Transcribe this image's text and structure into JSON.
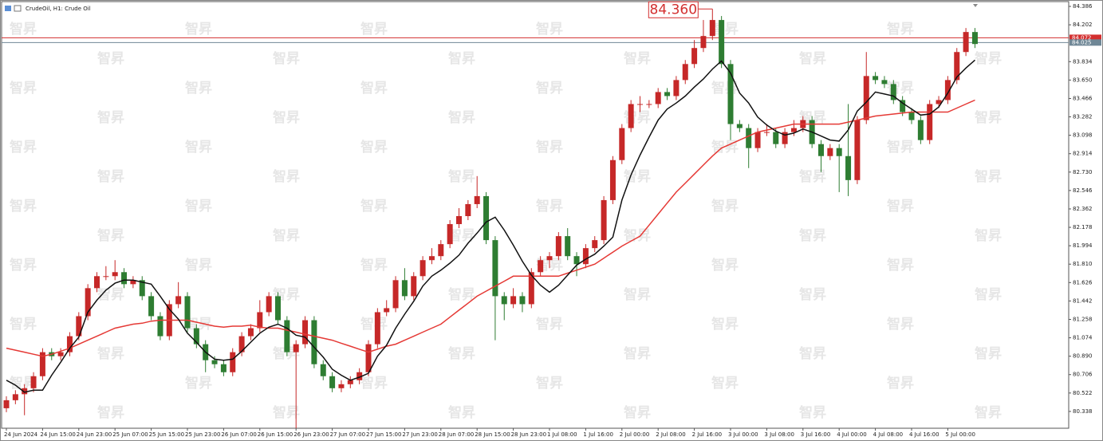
{
  "chart_data": {
    "type": "candlestick",
    "title": "CrudeOil, H1: Crude Oil",
    "watermark": "智昇",
    "up_color": "#c62828",
    "down_color": "#2e7d32",
    "ylim": [
      80.17,
      84.434
    ],
    "yticks": [
      84.386,
      84.202,
      83.834,
      {
        "value": 83.65,
        "label": "83.650"
      },
      83.466,
      83.282,
      83.098,
      82.914,
      {
        "value": 82.73,
        "label": "82.730"
      },
      82.546,
      82.362,
      82.178,
      81.994,
      {
        "value": 81.81,
        "label": "81.810"
      },
      81.626,
      81.442,
      81.258,
      81.074,
      {
        "value": 80.89,
        "label": "80.890"
      },
      80.706,
      80.522,
      80.338
    ],
    "categories": [
      "24 Jun 2024",
      null,
      null,
      null,
      "24 Jun 15:00",
      null,
      null,
      null,
      "24 Jun 23:00",
      null,
      null,
      null,
      "25 Jun 07:00",
      null,
      null,
      null,
      "25 Jun 15:00",
      null,
      null,
      null,
      "25 Jun 23:00",
      null,
      null,
      null,
      "26 Jun 07:00",
      null,
      null,
      null,
      "26 Jun 15:00",
      null,
      null,
      null,
      "26 Jun 23:00",
      null,
      null,
      null,
      "27 Jun 07:00",
      null,
      null,
      null,
      "27 Jun 15:00",
      null,
      null,
      null,
      "27 Jun 23:00",
      null,
      null,
      null,
      "28 Jun 07:00",
      null,
      null,
      null,
      "28 Jun 15:00",
      null,
      null,
      null,
      "28 Jun 23:00",
      null,
      null,
      null,
      "1 Jul 08:00",
      null,
      null,
      null,
      "1 Jul 16:00",
      null,
      null,
      null,
      "2 Jul 00:00",
      null,
      null,
      null,
      "2 Jul 08:00",
      null,
      null,
      null,
      "2 Jul 16:00",
      null,
      null,
      null,
      "3 Jul 00:00",
      null,
      null,
      null,
      "3 Jul 08:00",
      null,
      null,
      null,
      "3 Jul 16:00",
      null,
      null,
      null,
      "4 Jul 00:00",
      null,
      null,
      null,
      "4 Jul 08:00",
      null,
      null,
      null,
      "4 Jul 16:00",
      null,
      null,
      null,
      "5 Jul 00:00",
      null,
      null,
      null
    ],
    "open": [
      80.37,
      80.45,
      80.51,
      80.57,
      80.69,
      80.93,
      80.89,
      80.93,
      81.09,
      81.29,
      81.57,
      81.69,
      81.69,
      81.73,
      81.61,
      81.65,
      81.49,
      81.29,
      81.09,
      81.41,
      81.49,
      81.17,
      81.01,
      80.85,
      80.81,
      80.73,
      80.93,
      81.09,
      81.17,
      81.33,
      81.49,
      81.25,
      80.93,
      81.01,
      81.25,
      80.81,
      80.69,
      80.57,
      80.61,
      80.65,
      80.73,
      81.01,
      81.33,
      81.37,
      81.65,
      81.49,
      81.69,
      81.85,
      81.89,
      82.01,
      82.21,
      82.29,
      82.41,
      82.49,
      82.05,
      81.49,
      81.41,
      81.49,
      81.41,
      81.73,
      81.85,
      81.89,
      82.09,
      81.89,
      81.81,
      81.97,
      82.05,
      82.45,
      82.85,
      83.17,
      83.41,
      83.41,
      83.41,
      83.53,
      83.49,
      83.65,
      83.81,
      83.97,
      84.09,
      84.25,
      83.81,
      83.21,
      83.17,
      82.97,
      83.13,
      83.13,
      83.01,
      83.13,
      83.17,
      83.25,
      83.01,
      82.89,
      82.97,
      82.89,
      82.65,
      83.25,
      83.69,
      83.65,
      83.61,
      83.45,
      83.33,
      83.25,
      83.05,
      83.41,
      83.45,
      83.65,
      83.93,
      84.13
    ],
    "high": [
      80.49,
      80.55,
      80.61,
      80.73,
      80.97,
      80.97,
      80.97,
      81.13,
      81.33,
      81.61,
      81.73,
      81.79,
      81.85,
      81.77,
      81.69,
      81.69,
      81.53,
      81.33,
      81.45,
      81.63,
      81.53,
      81.21,
      81.05,
      80.89,
      80.85,
      80.97,
      81.13,
      81.21,
      81.45,
      81.53,
      81.53,
      81.29,
      81.05,
      81.29,
      81.29,
      80.85,
      80.73,
      80.65,
      80.69,
      80.77,
      81.05,
      81.37,
      81.45,
      81.69,
      81.77,
      81.73,
      81.89,
      81.97,
      82.05,
      82.25,
      82.37,
      82.45,
      82.69,
      82.53,
      82.09,
      81.53,
      81.57,
      81.53,
      81.77,
      81.89,
      81.93,
      82.13,
      82.17,
      81.93,
      82.01,
      82.09,
      82.49,
      82.89,
      83.21,
      83.45,
      83.49,
      83.45,
      83.57,
      83.57,
      83.69,
      83.85,
      84.05,
      84.25,
      84.36,
      84.29,
      83.85,
      83.25,
      83.21,
      83.17,
      83.21,
      83.17,
      83.17,
      83.25,
      83.29,
      83.29,
      83.05,
      83.01,
      83.01,
      83.41,
      83.29,
      83.93,
      83.73,
      83.69,
      83.65,
      83.49,
      83.37,
      83.29,
      83.45,
      83.49,
      83.69,
      83.97,
      84.17,
      84.17
    ],
    "low": [
      80.33,
      80.41,
      80.3,
      80.53,
      80.65,
      80.85,
      80.85,
      80.89,
      81.05,
      81.25,
      81.53,
      81.65,
      81.65,
      81.57,
      81.57,
      81.45,
      81.25,
      81.05,
      81.05,
      81.37,
      81.13,
      80.97,
      80.73,
      80.77,
      80.69,
      80.69,
      80.89,
      81.05,
      81.13,
      81.29,
      81.21,
      80.89,
      80.17,
      80.97,
      80.77,
      80.65,
      80.53,
      80.53,
      80.57,
      80.61,
      80.69,
      80.97,
      81.29,
      81.33,
      81.45,
      81.45,
      81.65,
      81.81,
      81.85,
      81.97,
      82.17,
      82.25,
      82.37,
      82.01,
      81.05,
      81.25,
      81.37,
      81.33,
      81.37,
      81.69,
      81.77,
      81.85,
      81.85,
      81.69,
      81.77,
      81.93,
      82.01,
      82.41,
      82.81,
      83.13,
      83.33,
      83.37,
      83.37,
      83.45,
      83.45,
      83.61,
      83.77,
      83.93,
      84.05,
      83.77,
      83.05,
      83.13,
      82.77,
      82.93,
      83.09,
      82.97,
      82.97,
      83.09,
      83.13,
      82.97,
      82.73,
      82.85,
      82.53,
      82.49,
      82.61,
      83.21,
      83.61,
      83.57,
      83.41,
      83.29,
      83.21,
      83.01,
      83.01,
      83.37,
      83.41,
      83.61,
      83.89,
      83.97
    ],
    "close": [
      80.45,
      80.51,
      80.57,
      80.69,
      80.93,
      80.89,
      80.93,
      81.09,
      81.29,
      81.57,
      81.69,
      81.69,
      81.73,
      81.61,
      81.65,
      81.49,
      81.29,
      81.09,
      81.41,
      81.49,
      81.17,
      81.01,
      80.85,
      80.81,
      80.73,
      80.93,
      81.09,
      81.17,
      81.33,
      81.49,
      81.25,
      80.93,
      81.01,
      81.25,
      80.81,
      80.69,
      80.57,
      80.61,
      80.65,
      80.73,
      81.01,
      81.33,
      81.37,
      81.65,
      81.49,
      81.69,
      81.85,
      81.89,
      82.01,
      82.21,
      82.29,
      82.41,
      82.49,
      82.05,
      81.49,
      81.41,
      81.49,
      81.41,
      81.73,
      81.85,
      81.89,
      82.09,
      81.89,
      81.81,
      81.97,
      82.05,
      82.45,
      82.85,
      83.17,
      83.41,
      83.41,
      83.41,
      83.53,
      83.49,
      83.65,
      83.81,
      83.97,
      84.09,
      84.25,
      83.81,
      83.21,
      83.17,
      82.97,
      83.13,
      83.13,
      83.01,
      83.13,
      83.17,
      83.25,
      83.01,
      82.89,
      82.97,
      82.89,
      82.65,
      83.25,
      83.69,
      83.65,
      83.61,
      83.45,
      83.33,
      83.25,
      83.05,
      83.41,
      83.45,
      83.65,
      83.93,
      84.13,
      84.01
    ],
    "lines": [
      {
        "color": "#e53935",
        "values": [
          80.97,
          80.95,
          80.93,
          80.91,
          80.89,
          80.91,
          80.94,
          80.97,
          81.01,
          81.05,
          81.09,
          81.13,
          81.17,
          81.19,
          81.21,
          81.22,
          81.24,
          81.25,
          81.25,
          81.25,
          81.25,
          81.23,
          81.21,
          81.19,
          81.18,
          81.19,
          81.19,
          81.2,
          81.18,
          81.17,
          81.17,
          81.15,
          81.13,
          81.11,
          81.09,
          81.07,
          81.05,
          81.02,
          80.99,
          80.96,
          80.93,
          80.96,
          80.99,
          81.01,
          81.05,
          81.09,
          81.13,
          81.17,
          81.21,
          81.28,
          81.35,
          81.42,
          81.49,
          81.54,
          81.59,
          81.64,
          81.69,
          81.69,
          81.69,
          81.69,
          81.69,
          81.69,
          81.72,
          81.75,
          81.78,
          81.81,
          81.87,
          81.93,
          81.99,
          82.04,
          82.09,
          82.2,
          82.31,
          82.42,
          82.53,
          82.62,
          82.71,
          82.8,
          82.89,
          82.97,
          83.01,
          83.05,
          83.09,
          83.13,
          83.15,
          83.17,
          83.19,
          83.21,
          83.21,
          83.21,
          83.21,
          83.21,
          83.21,
          83.23,
          83.25,
          83.27,
          83.29,
          83.3,
          83.31,
          83.32,
          83.33,
          83.33,
          83.33,
          83.33,
          83.33,
          83.37,
          83.41,
          83.45
        ]
      },
      {
        "color": "#111111",
        "values": [
          80.65,
          80.6,
          80.53,
          80.55,
          80.55,
          80.7,
          80.83,
          80.97,
          81.08,
          81.33,
          81.45,
          81.55,
          81.62,
          81.65,
          81.65,
          81.63,
          81.61,
          81.49,
          81.36,
          81.26,
          81.12,
          81.03,
          80.93,
          80.86,
          80.85,
          80.86,
          80.94,
          81.03,
          81.12,
          81.18,
          81.21,
          81.17,
          81.1,
          81.08,
          80.98,
          80.88,
          80.76,
          80.7,
          80.65,
          80.68,
          80.72,
          80.89,
          81.0,
          81.17,
          81.31,
          81.44,
          81.59,
          81.69,
          81.75,
          81.82,
          81.9,
          82.02,
          82.12,
          82.23,
          82.28,
          82.15,
          82.0,
          81.84,
          81.7,
          81.6,
          81.53,
          81.6,
          81.7,
          81.8,
          81.86,
          81.91,
          81.99,
          82.08,
          82.45,
          82.7,
          82.9,
          83.08,
          83.25,
          83.36,
          83.42,
          83.49,
          83.58,
          83.66,
          83.76,
          83.84,
          83.72,
          83.52,
          83.42,
          83.28,
          83.2,
          83.14,
          83.1,
          83.12,
          83.16,
          83.13,
          83.09,
          83.05,
          83.04,
          83.15,
          83.34,
          83.43,
          83.53,
          83.51,
          83.49,
          83.42,
          83.36,
          83.3,
          83.31,
          83.38,
          83.52,
          83.68,
          83.77,
          83.85
        ]
      }
    ],
    "price_lines": [
      {
        "price": 84.072,
        "color": "#d32f2f"
      },
      {
        "price": 84.025,
        "color": "#6f8796"
      }
    ],
    "high_label": {
      "value": 84.36,
      "label": "84.360"
    }
  }
}
